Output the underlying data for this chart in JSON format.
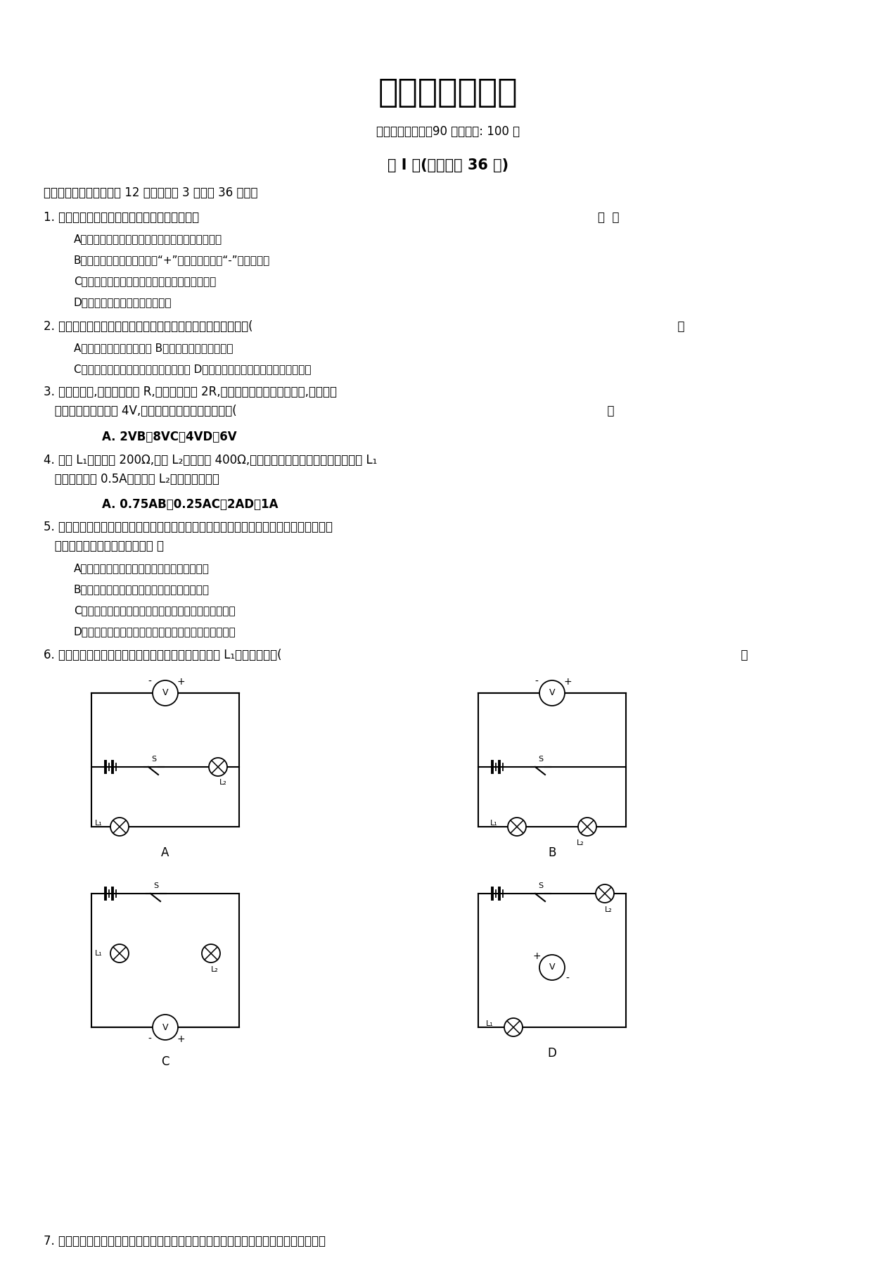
{
  "title": "八年级物理试卷",
  "subtitle": "本试卷考试时间：90 分钟分值: 100 分",
  "section1_title": "第 I 卷(选择题共 36 分)",
  "section1_label": "一、单项选择题（此题共 12 小题，每题 3 分，共 36 分．）",
  "q1": "1. 对于电表的使用方法，以下说法错误的选项是",
  "q1_paren": "（  ）",
  "q1a": "A．电流表应串连在电路中，电压表应并联在电路中",
  "q1b": "B．连结电表时一定让电流从“+”接线柱流入，从“-”接线柱流出",
  "q1c": "C．电压表、电流表都能够直接接在电源的两极上",
  "q1d": "D．被测值不可以超出电表的量程",
  "q2": "2. 将两个灯泡接入电路中，用电压表测得它们两头电压相等，则(",
  "q2_paren": "              ）",
  "q2ab": "A．两个灯泡必定是串连的 B．两个灯泡必定是并联的",
  "q2cd": "C．若经过的电流相等，则必定是串连的 D．条件不足，无法确立两灯的连结方式",
  "q3": "3. 两个用电器,第一个电阵是 R,第二个电阵是 2R,把它们串连起来接入电路中,假如第一",
  "q3b": "   个电阵两头的电压是 4V,那么第二个电阵两头的电压为(",
  "q3_paren": "              ）",
  "q3abcd": "A. 2VB．8VC．4VD．6V",
  "q4": "4. 灯泡 L₁的电阵为 200Ω,灯泡 L₂的电阵为 400Ω,两个灯泡并联后接入电路中，若经过 L₁",
  "q4b": "   的电流强度为 0.5A，则经过 L₂电流强度为（）",
  "q4abcd": "A. 0.75AB．0.25AC．2AD．1A",
  "q5": "5. 把甲、乙两段电阵线接在同样的电压下，甲线中的电流大于乙线中的电流，忽视温度的影",
  "q5b": "   响，以下判断中错误的选项是（ ）",
  "q5a": "A．当它们资料、粗细都同样时，甲线长乙线短",
  "q5b_opt": "B．当它们资料、长度都同样时，甲线粗乙线细",
  "q5c": "C．当它们长度、粗细都同样时，两线的资料必定不一样",
  "q5d": "D．甲、乙两电阵线的资料、长短、粗细不行能完整同样",
  "q6": "6. 在以以下图所示的电路图中，能用电压表正确测出灯 L₁两头电压的是(",
  "q6_paren": "              ）",
  "q7": "7. 动变阵器是经过改变自己连入电路中的阵值进而实现改变电路中电流的，滑动变阵器是",
  "bg_color": "#ffffff",
  "text_color": "#000000"
}
